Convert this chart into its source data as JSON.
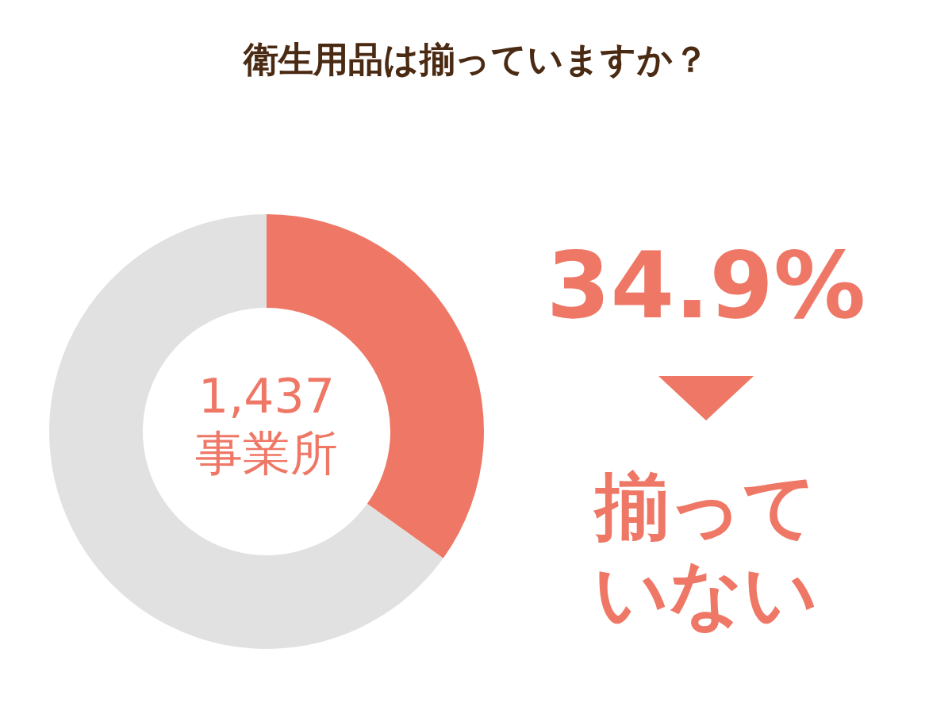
{
  "chart_data": {
    "type": "donut",
    "title": "衛生用品は揃っていますか？",
    "categories": [
      "揃っていない",
      null
    ],
    "values": [
      34.9,
      65.1
    ],
    "colors": [
      "#ef7766",
      "#e1e1e1"
    ],
    "value_labels": [
      "34.9%",
      null
    ],
    "annotations": [
      "1,437\n事業所"
    ]
  }
}
